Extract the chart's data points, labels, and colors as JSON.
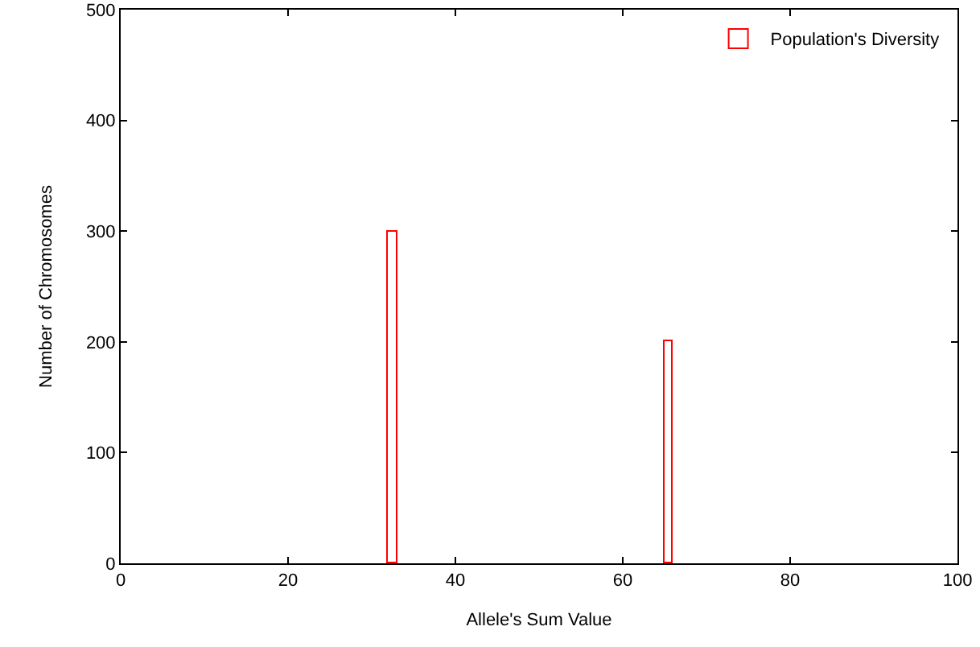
{
  "chart_data": {
    "type": "histogram",
    "xlabel": "Allele's Sum Value",
    "ylabel": "Number of Chromosomes",
    "bins": [
      32,
      33,
      65,
      66
    ],
    "series": [
      {
        "name": "Population's Diversity",
        "color": "#ff0000",
        "values": [
          300,
          0,
          200
        ]
      }
    ],
    "xlim": [
      0,
      100
    ],
    "xticks": [
      0,
      20,
      40,
      60,
      80,
      100
    ],
    "ylim": [
      0,
      500
    ],
    "yticks": [
      0,
      100,
      200,
      300,
      400,
      500
    ],
    "grid": false,
    "legend": "top right"
  }
}
